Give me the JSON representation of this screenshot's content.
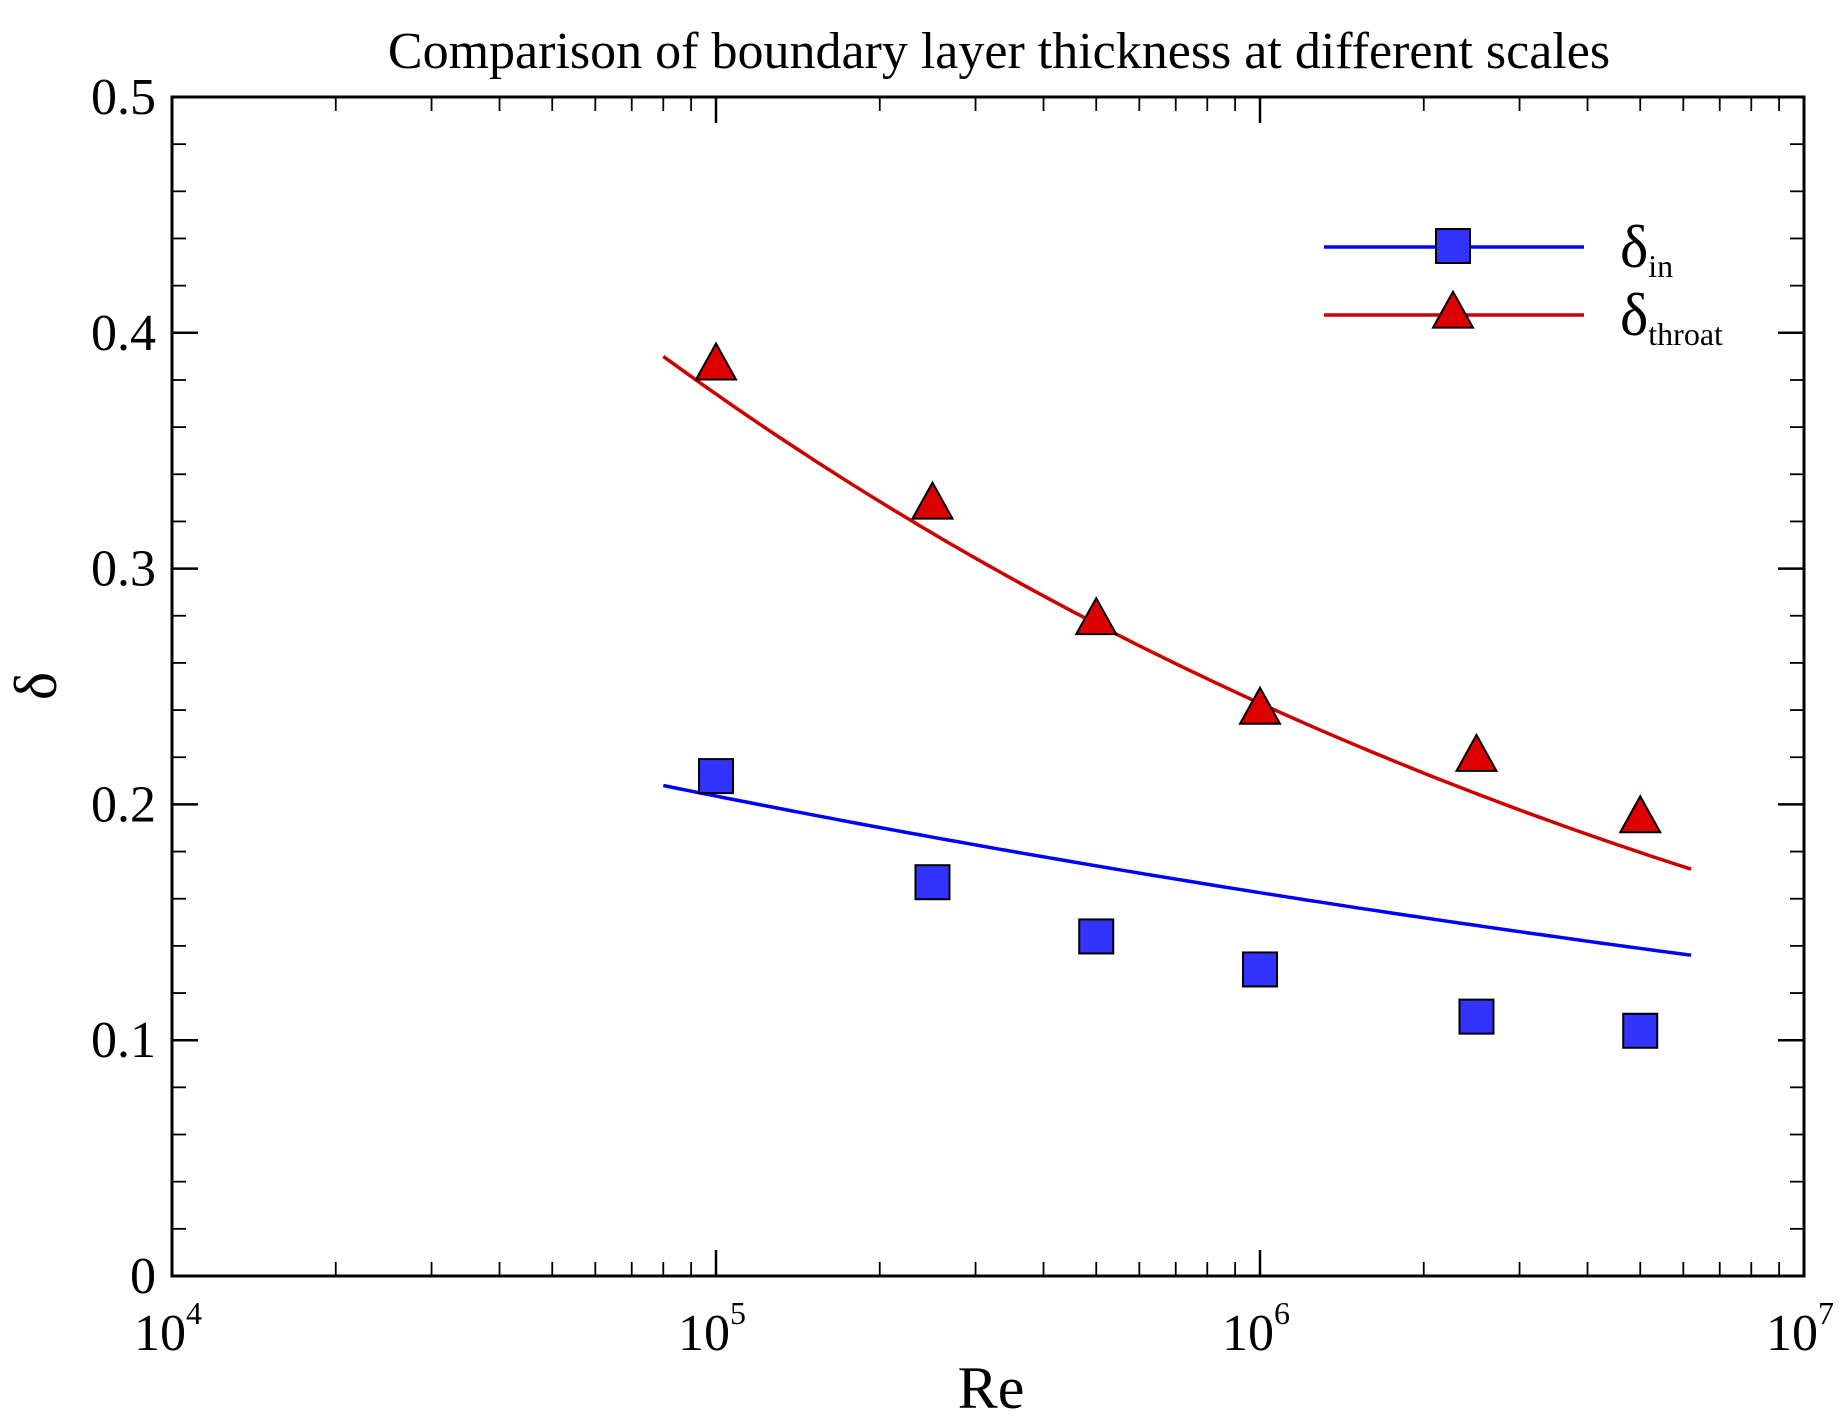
{
  "chart_data": {
    "type": "scatter",
    "title": "Comparison of boundary layer thickness at different scales",
    "xlabel": "Re",
    "ylabel": "δ",
    "xscale": "log",
    "xlim": [
      10000,
      10000000
    ],
    "ylim": [
      0,
      0.5
    ],
    "x_ticks": [
      {
        "base": "10",
        "exp": "4"
      },
      {
        "base": "10",
        "exp": "5"
      },
      {
        "base": "10",
        "exp": "6"
      },
      {
        "base": "10",
        "exp": "7"
      }
    ],
    "y_ticks": [
      "0",
      "0.1",
      "0.2",
      "0.3",
      "0.4",
      "0.5"
    ],
    "y_tick_values": [
      0,
      0.1,
      0.2,
      0.3,
      0.4,
      0.5
    ],
    "grid": false,
    "legend_position": "top-right",
    "series": [
      {
        "name": "δ_in",
        "label_main": "δ",
        "label_sub": "in",
        "color": "#0000ff",
        "marker": "square",
        "marker_fill": "#3333ff",
        "x": [
          100000,
          250000,
          500000,
          1000000,
          2500000,
          5000000
        ],
        "y": [
          0.212,
          0.167,
          0.144,
          0.13,
          0.11,
          0.104
        ],
        "fit": {
          "a": 0.208,
          "c": 0.0976,
          "x_start": 80000,
          "x_end": 6200000
        }
      },
      {
        "name": "δ_throat",
        "label_main": "δ",
        "label_sub": "throat",
        "color": "#cc0000",
        "marker": "triangle",
        "marker_fill": "#dd0000",
        "x": [
          100000,
          250000,
          500000,
          1000000,
          2500000,
          5000000
        ],
        "y": [
          0.386,
          0.327,
          0.278,
          0.24,
          0.22,
          0.194
        ],
        "fit": {
          "a": 0.39,
          "c": 0.1875,
          "x_start": 80000,
          "x_end": 6200000
        }
      }
    ]
  }
}
